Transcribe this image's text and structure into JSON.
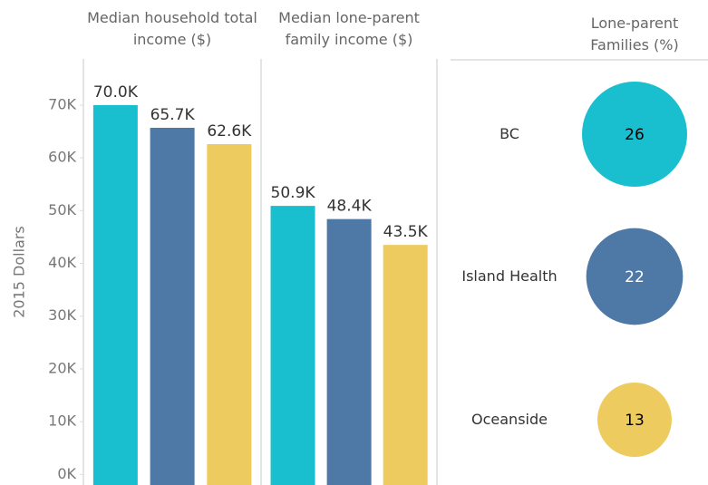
{
  "chart_data": [
    {
      "type": "bar",
      "title": "Median household total income ($)",
      "y_label": "2015 Dollars",
      "categories": [
        null,
        null,
        null
      ],
      "values": [
        70000,
        65700,
        62600
      ],
      "value_labels": [
        "70.0K",
        "65.7K",
        "62.6K"
      ],
      "colors": [
        "#19bfcf",
        "#4e79a7",
        "#eecb5f"
      ],
      "ylim": [
        -2000,
        76000
      ],
      "yticks": [
        {
          "value": 0,
          "label": "0K"
        },
        {
          "value": 10000,
          "label": "10K"
        },
        {
          "value": 20000,
          "label": "20K"
        },
        {
          "value": 30000,
          "label": "30K"
        },
        {
          "value": 40000,
          "label": "40K"
        },
        {
          "value": 50000,
          "label": "50K"
        },
        {
          "value": 60000,
          "label": "60K"
        },
        {
          "value": 70000,
          "label": "70K"
        }
      ]
    },
    {
      "type": "bar",
      "title": "Median lone-parent family income ($)",
      "categories": [
        null,
        null,
        null
      ],
      "values": [
        50900,
        48400,
        43500
      ],
      "value_labels": [
        "50.9K",
        "48.4K",
        "43.5K"
      ],
      "colors": [
        "#19bfcf",
        "#4e79a7",
        "#eecb5f"
      ],
      "ylim": [
        -2000,
        76000
      ]
    },
    {
      "type": "bubble",
      "title": "Lone-parent Families (%)",
      "categories": [
        "BC",
        "Island Health",
        "Oceanside"
      ],
      "values": [
        26,
        22,
        13
      ],
      "colors": [
        "#19bfcf",
        "#4e79a7",
        "#eecb5f"
      ],
      "label_colors": [
        "#000000",
        "#ffffff",
        "#000000"
      ]
    }
  ]
}
